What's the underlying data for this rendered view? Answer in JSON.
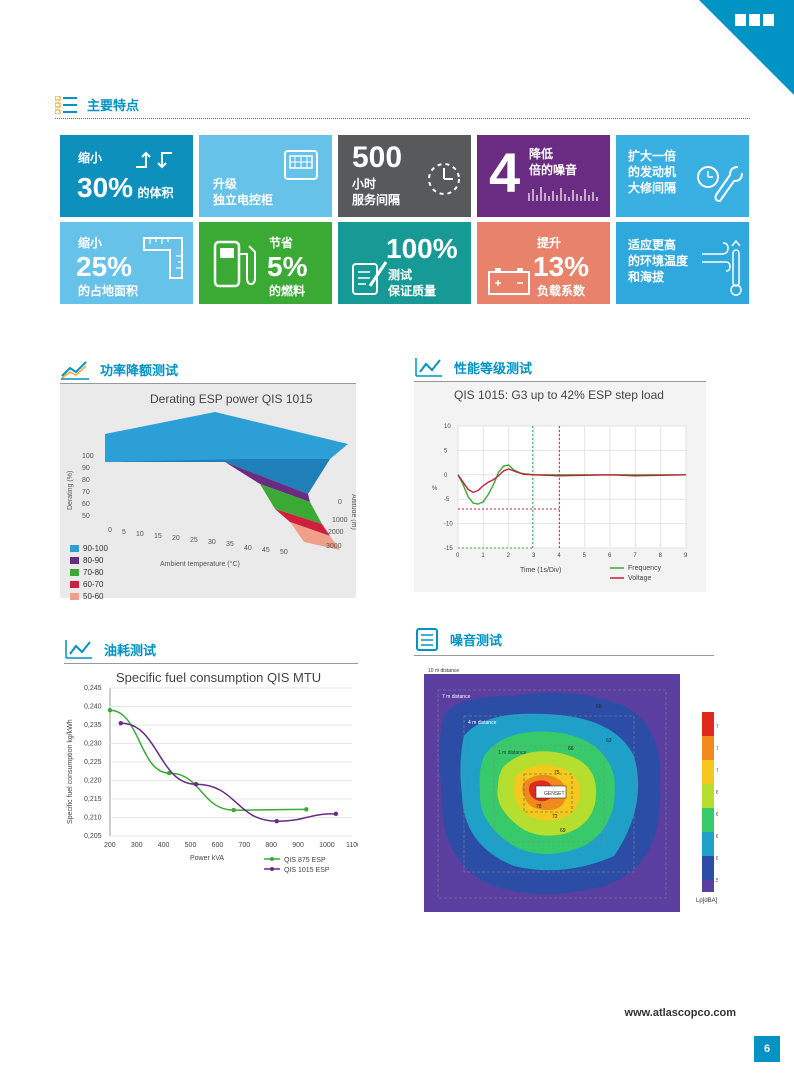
{
  "section_title": "主要特点",
  "tiles": [
    {
      "top_text": "缩小",
      "value": "30%",
      "unit": "的体积"
    },
    {
      "line1": "升级",
      "line2": "独立电控柜"
    },
    {
      "value": "500",
      "line1": "小时",
      "line2": "服务间隔"
    },
    {
      "value": "4",
      "line1": "降低",
      "line2": "倍的噪音"
    },
    {
      "line1": "扩大一倍",
      "line2": "的发动机",
      "line3": "大修间隔"
    },
    {
      "top_text": "缩小",
      "value": "25%",
      "bottom_text": "的占地面积"
    },
    {
      "top_text": "节省",
      "value": "5%",
      "bottom_text": "的燃料"
    },
    {
      "value": "100%",
      "line1": "测试",
      "line2": "保证质量"
    },
    {
      "top_text": "提升",
      "value": "13%",
      "bottom_text": "负载系数"
    },
    {
      "line1": "适应更高",
      "line2": "的环境温度",
      "line3": "和海拔"
    }
  ],
  "colors": {
    "brand": "#0093c4",
    "tile_blue": "#0e90bd",
    "tile_sky": "#67c2ea",
    "tile_gray": "#58595b",
    "tile_purple": "#6a2b83",
    "tile_light_blue": "#3ab0e2",
    "tile_green": "#3aaa35",
    "tile_teal": "#179a96",
    "tile_salmon": "#e8826a",
    "tile_azure": "#2fa8de"
  },
  "panels": {
    "derating": {
      "heading": "功率降额测试",
      "chart_title": "Derating ESP power QIS 1015"
    },
    "performance": {
      "heading": "性能等级测试",
      "chart_title": "QIS 1015: G3 up to 42% ESP step load"
    },
    "fuel": {
      "heading": "油耗测试",
      "chart_title": "Specific fuel consumption QIS MTU"
    },
    "noise": {
      "heading": "噪音测试"
    }
  },
  "chart_data": [
    {
      "type": "area",
      "title": "Derating ESP power QIS 1015",
      "xlabel": "Ambient temperature (°C)",
      "ylabel": "Derating (%)",
      "zlabel": "Altitude (m)",
      "x_ticks": [
        "0",
        "5",
        "10",
        "15",
        "20",
        "25",
        "30",
        "35",
        "40",
        "45",
        "50"
      ],
      "y_ticks": [
        "100",
        "90",
        "80",
        "70",
        "60",
        "50"
      ],
      "z_ticks": [
        "0",
        "1000",
        "2000",
        "3000"
      ],
      "legend": [
        {
          "label": "90-100",
          "color": "#2b9fd6"
        },
        {
          "label": "80-90",
          "color": "#6a2b83"
        },
        {
          "label": "70-80",
          "color": "#3aaa35"
        },
        {
          "label": "60-70",
          "color": "#d01f3c"
        },
        {
          "label": "50-60",
          "color": "#f0a08a"
        }
      ]
    },
    {
      "type": "line",
      "title": "QIS 1015: G3 up to 42% ESP step load",
      "xlabel": "Time (1s/Div)",
      "ylabel": "%",
      "xlim": [
        0,
        9
      ],
      "ylim": [
        -15,
        10
      ],
      "x_ticks": [
        "0",
        "1",
        "2",
        "3",
        "4",
        "5",
        "6",
        "7",
        "8",
        "9"
      ],
      "y_ticks": [
        "10",
        "5",
        "0",
        "-5",
        "-10",
        "-15"
      ],
      "series": [
        {
          "name": "Frequency",
          "color": "#3aaa35",
          "x": [
            0,
            0.2,
            0.4,
            0.6,
            0.8,
            1.0,
            1.2,
            1.4,
            1.6,
            1.8,
            2.0,
            2.2,
            2.5,
            3,
            4,
            5,
            6,
            7,
            8,
            9
          ],
          "y": [
            0,
            -2,
            -4.5,
            -5.8,
            -6,
            -5.5,
            -4,
            -2,
            0.5,
            1.8,
            2,
            1,
            0.3,
            0,
            0,
            0,
            0,
            0,
            0,
            0
          ]
        },
        {
          "name": "Voltage",
          "color": "#c0233d",
          "x": [
            0,
            0.2,
            0.4,
            0.6,
            0.8,
            1.0,
            1.2,
            1.4,
            1.6,
            1.8,
            2.0,
            2.3,
            2.6,
            3,
            4,
            5,
            6,
            7,
            8,
            9
          ],
          "y": [
            0,
            -1.5,
            -3,
            -3.6,
            -3.2,
            -2.2,
            -1.5,
            -1,
            -0.2,
            0.8,
            1.2,
            0.6,
            0.1,
            0,
            -0.2,
            -0.1,
            0,
            -0.2,
            -0.1,
            0
          ]
        }
      ]
    },
    {
      "type": "line",
      "title": "Specific fuel consumption QIS MTU",
      "xlabel": "Power kVA",
      "ylabel": "Specific fuel consumption kg/kWh",
      "xlim": [
        200,
        1100
      ],
      "ylim": [
        0.205,
        0.245
      ],
      "x_ticks": [
        "200",
        "300",
        "400",
        "500",
        "600",
        "700",
        "800",
        "900",
        "1000",
        "1100"
      ],
      "y_ticks": [
        "0,245",
        "0,240",
        "0,235",
        "0,230",
        "0,225",
        "0,220",
        "0,215",
        "0,210",
        "0,205"
      ],
      "series": [
        {
          "name": "QIS 875 ESP",
          "color": "#3aaa35",
          "x": [
            200,
            420,
            660,
            930
          ],
          "y": [
            0.239,
            0.222,
            0.212,
            0.2122
          ]
        },
        {
          "name": "QIS 1015 ESP",
          "color": "#6a2b83",
          "x": [
            240,
            520,
            820,
            1040
          ],
          "y": [
            0.2355,
            0.219,
            0.209,
            0.211
          ]
        }
      ]
    },
    {
      "type": "heatmap",
      "title": "",
      "legend_title": "Lp[dBA]",
      "scale_ticks": [
        "78",
        "75",
        "72",
        "69",
        "66",
        "63",
        "60",
        "57"
      ],
      "annotations": [
        "10 m distance",
        "7 m distance",
        "4 m distance",
        "1 m distance",
        "GENSET"
      ],
      "contour_labels": [
        "60",
        "63",
        "66",
        "69",
        "72",
        "75",
        "78"
      ]
    }
  ],
  "footer": {
    "url": "www.atlascopco.com",
    "page": "6"
  }
}
